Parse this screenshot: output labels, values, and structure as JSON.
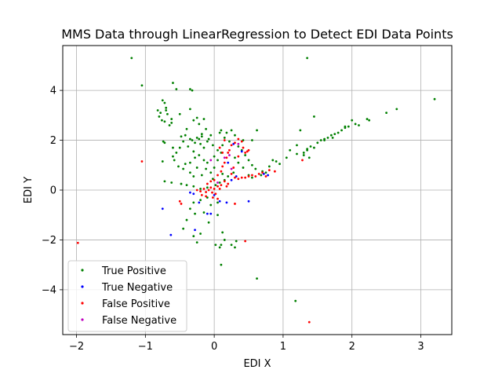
{
  "chart_data": {
    "type": "scatter",
    "title": "MMS Data through LinearRegression to Detect EDI Data Points",
    "xlabel": "EDI X",
    "ylabel": "EDI Y",
    "xlim": [
      -2.2,
      3.45
    ],
    "ylim": [
      -5.8,
      5.8
    ],
    "xticks": [
      -2,
      -1,
      0,
      1,
      2,
      3
    ],
    "yticks": [
      -4,
      -2,
      0,
      2,
      4
    ],
    "grid": true,
    "legend_position": "lower-left",
    "series": [
      {
        "name": "True Positive",
        "color": "#008000",
        "points": [
          [
            -1.2,
            5.3
          ],
          [
            -1.05,
            4.2
          ],
          [
            -0.6,
            4.3
          ],
          [
            -0.55,
            4.05
          ],
          [
            -0.35,
            4.05
          ],
          [
            -0.32,
            4.0
          ],
          [
            1.35,
            5.3
          ],
          [
            3.2,
            3.65
          ],
          [
            -0.75,
            3.6
          ],
          [
            -0.72,
            3.5
          ],
          [
            -0.7,
            3.3
          ],
          [
            -0.7,
            3.2
          ],
          [
            -0.82,
            3.2
          ],
          [
            -0.78,
            3.1
          ],
          [
            -0.68,
            3.05
          ],
          [
            -0.8,
            2.95
          ],
          [
            -0.76,
            2.8
          ],
          [
            -0.72,
            2.75
          ],
          [
            -0.62,
            2.85
          ],
          [
            -0.62,
            2.7
          ],
          [
            -0.5,
            3.05
          ],
          [
            -0.35,
            3.25
          ],
          [
            -0.3,
            2.8
          ],
          [
            -0.25,
            2.9
          ],
          [
            -0.22,
            2.65
          ],
          [
            -0.15,
            2.85
          ],
          [
            -0.12,
            2.45
          ],
          [
            -0.18,
            2.25
          ],
          [
            -0.25,
            2.1
          ],
          [
            -0.35,
            2.05
          ],
          [
            -0.42,
            2.2
          ],
          [
            -0.45,
            1.95
          ],
          [
            -0.5,
            1.7
          ],
          [
            -0.38,
            1.75
          ],
          [
            -0.3,
            1.55
          ],
          [
            -0.2,
            1.85
          ],
          [
            -0.1,
            1.95
          ],
          [
            -0.05,
            2.2
          ],
          [
            -0.08,
            2.05
          ],
          [
            -0.15,
            1.7
          ],
          [
            -0.55,
            1.5
          ],
          [
            -0.58,
            1.2
          ],
          [
            -0.52,
            0.95
          ],
          [
            -0.42,
            1.05
          ],
          [
            -0.35,
            1.1
          ],
          [
            -0.28,
            1.3
          ],
          [
            -0.22,
            1.4
          ],
          [
            -0.15,
            1.2
          ],
          [
            -0.72,
            1.9
          ],
          [
            -0.74,
            1.95
          ],
          [
            -0.75,
            1.15
          ],
          [
            -0.6,
            1.7
          ],
          [
            -0.45,
            0.85
          ],
          [
            -0.35,
            0.7
          ],
          [
            -0.3,
            0.55
          ],
          [
            -0.25,
            0.9
          ],
          [
            -0.18,
            0.6
          ],
          [
            -0.12,
            0.85
          ],
          [
            -0.05,
            0.7
          ],
          [
            0.0,
            0.9
          ],
          [
            0.05,
            1.2
          ],
          [
            0.1,
            1.5
          ],
          [
            0.12,
            1.8
          ],
          [
            0.15,
            2.1
          ],
          [
            0.18,
            2.3
          ],
          [
            0.25,
            2.4
          ],
          [
            0.3,
            2.2
          ],
          [
            0.22,
            1.95
          ],
          [
            0.35,
            1.75
          ],
          [
            0.4,
            1.6
          ],
          [
            0.45,
            1.4
          ],
          [
            0.5,
            1.2
          ],
          [
            0.55,
            1.0
          ],
          [
            0.6,
            0.85
          ],
          [
            0.62,
            2.4
          ],
          [
            0.55,
            2.0
          ],
          [
            0.42,
            2.0
          ],
          [
            0.1,
            2.4
          ],
          [
            0.08,
            2.3
          ],
          [
            -0.72,
            0.35
          ],
          [
            -0.62,
            0.3
          ],
          [
            -0.48,
            0.25
          ],
          [
            -0.4,
            0.2
          ],
          [
            -0.3,
            0.15
          ],
          [
            -0.2,
            0.05
          ],
          [
            -0.1,
            0.1
          ],
          [
            0.02,
            0.2
          ],
          [
            0.08,
            0.3
          ],
          [
            0.15,
            0.4
          ],
          [
            -0.1,
            -0.3
          ],
          [
            -0.2,
            -0.4
          ],
          [
            -0.3,
            -0.5
          ],
          [
            -0.35,
            -0.75
          ],
          [
            -0.28,
            -0.95
          ],
          [
            -0.15,
            -0.9
          ],
          [
            -0.05,
            -0.6
          ],
          [
            0.05,
            -0.5
          ],
          [
            -0.4,
            -1.2
          ],
          [
            -0.45,
            -1.55
          ],
          [
            -0.3,
            -1.85
          ],
          [
            -0.2,
            -1.75
          ],
          [
            -0.08,
            -1.3
          ],
          [
            0.05,
            -1.0
          ],
          [
            0.12,
            -1.7
          ],
          [
            0.15,
            -2.0
          ],
          [
            0.1,
            -2.2
          ],
          [
            0.08,
            -2.3
          ],
          [
            0.02,
            -2.2
          ],
          [
            -0.25,
            -2.1
          ],
          [
            0.25,
            -2.2
          ],
          [
            0.32,
            -2.05
          ],
          [
            0.3,
            -2.3
          ],
          [
            0.1,
            -3.0
          ],
          [
            0.62,
            -3.55
          ],
          [
            1.18,
            -4.45
          ],
          [
            0.85,
            1.2
          ],
          [
            0.9,
            1.15
          ],
          [
            1.05,
            1.3
          ],
          [
            1.2,
            1.45
          ],
          [
            1.3,
            1.5
          ],
          [
            1.35,
            1.6
          ],
          [
            1.4,
            1.75
          ],
          [
            1.5,
            1.9
          ],
          [
            1.55,
            2.0
          ],
          [
            1.6,
            2.05
          ],
          [
            1.65,
            2.1
          ],
          [
            1.7,
            2.2
          ],
          [
            1.75,
            2.25
          ],
          [
            1.8,
            2.3
          ],
          [
            1.85,
            2.4
          ],
          [
            1.9,
            2.5
          ],
          [
            1.95,
            2.55
          ],
          [
            2.0,
            2.8
          ],
          [
            2.05,
            2.65
          ],
          [
            2.1,
            2.6
          ],
          [
            2.22,
            2.85
          ],
          [
            2.25,
            2.8
          ],
          [
            2.5,
            3.1
          ],
          [
            2.65,
            3.25
          ],
          [
            1.25,
            2.4
          ],
          [
            1.45,
            2.95
          ],
          [
            1.1,
            1.6
          ],
          [
            1.2,
            1.8
          ],
          [
            1.35,
            1.65
          ],
          [
            1.45,
            1.7
          ],
          [
            1.3,
            1.4
          ],
          [
            1.38,
            1.3
          ],
          [
            0.95,
            1.05
          ],
          [
            0.8,
            0.95
          ],
          [
            0.7,
            0.75
          ],
          [
            0.75,
            0.7
          ],
          [
            0.68,
            0.6
          ],
          [
            1.6,
            2.0
          ],
          [
            1.72,
            2.1
          ],
          [
            1.9,
            2.55
          ],
          [
            0.3,
            1.3
          ],
          [
            0.35,
            1.1
          ],
          [
            0.42,
            0.9
          ],
          [
            0.28,
            0.7
          ],
          [
            0.2,
            0.55
          ],
          [
            0.12,
            0.65
          ],
          [
            -0.02,
            0.45
          ],
          [
            -0.6,
            1.35
          ],
          [
            -0.65,
            2.6
          ],
          [
            -0.48,
            2.15
          ],
          [
            -0.4,
            2.45
          ],
          [
            -0.32,
            2.0
          ],
          [
            -0.28,
            1.9
          ],
          [
            -0.1,
            1.1
          ],
          [
            0.0,
            1.35
          ],
          [
            0.05,
            1.6
          ],
          [
            -0.18,
            2.15
          ],
          [
            -0.22,
            2.05
          ],
          [
            -0.02,
            1.8
          ],
          [
            0.5,
            0.6
          ],
          [
            0.55,
            0.5
          ]
        ]
      },
      {
        "name": "True Negative",
        "color": "#0000ff",
        "points": [
          [
            -0.75,
            -0.75
          ],
          [
            -0.63,
            -1.8
          ],
          [
            -0.35,
            -0.1
          ],
          [
            -0.3,
            -0.15
          ],
          [
            -0.22,
            -0.5
          ],
          [
            -0.28,
            -1.6
          ],
          [
            -0.1,
            -0.95
          ],
          [
            -0.05,
            -0.95
          ],
          [
            0.08,
            -0.45
          ],
          [
            0.18,
            -0.5
          ],
          [
            0.25,
            0.4
          ],
          [
            0.5,
            -0.45
          ],
          [
            0.72,
            0.65
          ],
          [
            0.78,
            0.6
          ],
          [
            0.4,
            1.55
          ],
          [
            0.28,
            1.85
          ],
          [
            0.2,
            1.1
          ],
          [
            0.32,
            0.55
          ],
          [
            0.0,
            -0.2
          ]
        ]
      },
      {
        "name": "False Positive",
        "color": "#ff0000",
        "points": [
          [
            -1.98,
            -2.12
          ],
          [
            -1.05,
            1.15
          ],
          [
            -0.5,
            -0.45
          ],
          [
            -0.48,
            -0.55
          ],
          [
            -0.25,
            0.0
          ],
          [
            -0.2,
            -0.05
          ],
          [
            -0.15,
            0.05
          ],
          [
            -0.12,
            -0.08
          ],
          [
            -0.08,
            0.0
          ],
          [
            -0.05,
            0.1
          ],
          [
            -0.03,
            -0.1
          ],
          [
            0.0,
            0.05
          ],
          [
            0.02,
            -0.15
          ],
          [
            0.05,
            0.15
          ],
          [
            -0.1,
            0.25
          ],
          [
            -0.05,
            0.35
          ],
          [
            0.0,
            0.4
          ],
          [
            0.05,
            0.6
          ],
          [
            0.1,
            0.75
          ],
          [
            0.12,
            0.95
          ],
          [
            0.15,
            1.1
          ],
          [
            0.18,
            1.3
          ],
          [
            0.2,
            1.5
          ],
          [
            0.22,
            1.6
          ],
          [
            0.25,
            1.8
          ],
          [
            0.3,
            1.9
          ],
          [
            0.35,
            2.05
          ],
          [
            0.4,
            1.95
          ],
          [
            0.42,
            1.7
          ],
          [
            0.45,
            1.5
          ],
          [
            0.48,
            1.55
          ],
          [
            0.5,
            1.6
          ],
          [
            0.3,
            0.5
          ],
          [
            0.35,
            0.45
          ],
          [
            0.4,
            0.5
          ],
          [
            0.45,
            0.5
          ],
          [
            0.5,
            0.55
          ],
          [
            0.55,
            0.6
          ],
          [
            0.6,
            0.55
          ],
          [
            0.65,
            0.65
          ],
          [
            0.7,
            0.7
          ],
          [
            0.8,
            0.8
          ],
          [
            0.88,
            0.75
          ],
          [
            0.75,
            0.55
          ],
          [
            0.3,
            -0.55
          ],
          [
            0.45,
            -2.05
          ],
          [
            1.38,
            -5.3
          ],
          [
            1.28,
            1.2
          ],
          [
            0.1,
            0.2
          ],
          [
            0.15,
            0.35
          ],
          [
            0.2,
            0.25
          ],
          [
            -0.18,
            -0.2
          ],
          [
            -0.12,
            -0.25
          ],
          [
            -0.02,
            -0.3
          ],
          [
            0.08,
            0.05
          ],
          [
            0.18,
            0.15
          ],
          [
            0.25,
            0.65
          ],
          [
            0.28,
            0.9
          ],
          [
            0.35,
            1.35
          ],
          [
            0.05,
            -0.35
          ],
          [
            0.12,
            1.5
          ],
          [
            0.08,
            1.7
          ],
          [
            0.15,
            2.0
          ]
        ]
      },
      {
        "name": "False Negative",
        "color": "#bf00bf",
        "points": [
          [
            0.15,
            1.3
          ],
          [
            0.22,
            1.4
          ],
          [
            -0.05,
            1.2
          ],
          [
            0.35,
            1.85
          ],
          [
            0.05,
            0.3
          ],
          [
            0.25,
            0.85
          ]
        ]
      }
    ]
  }
}
